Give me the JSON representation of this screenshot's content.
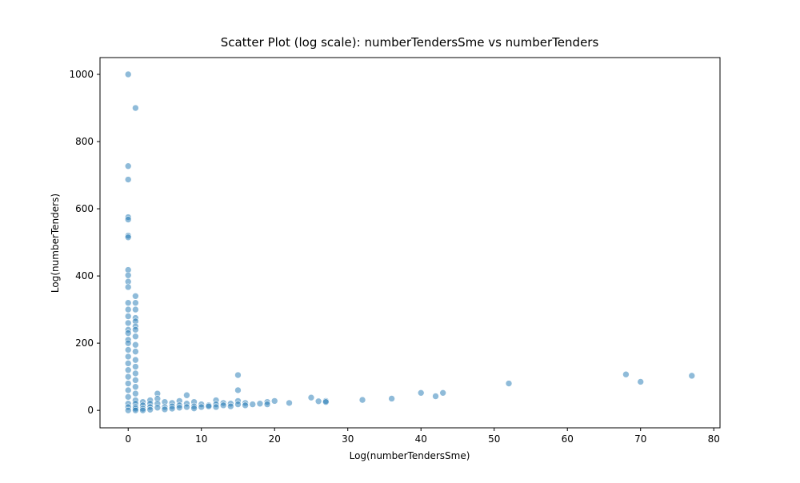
{
  "chart_data": {
    "type": "scatter",
    "title": "Scatter Plot (log scale): numberTendersSme vs numberTenders",
    "x_label": "Log(numberTendersSme)",
    "y_label": "Log(numberTenders)",
    "color": "#1f77b4",
    "alpha": 0.5,
    "xlim": [
      -3.85,
      80.85
    ],
    "ylim": [
      -52,
      1050
    ],
    "xticks": [
      0,
      10,
      20,
      30,
      40,
      50,
      60,
      70,
      80
    ],
    "yticks": [
      0,
      200,
      400,
      600,
      800,
      1000
    ],
    "x": [
      0,
      0,
      0,
      0,
      0,
      0,
      0,
      0,
      0,
      0,
      0,
      0,
      0,
      0,
      0,
      0,
      0,
      0,
      0,
      0,
      0,
      0,
      0,
      0,
      0,
      0,
      0,
      0,
      0,
      0,
      1,
      1,
      1,
      1,
      1,
      1,
      1,
      1,
      1,
      1,
      1,
      1,
      1,
      1,
      1,
      1,
      1,
      1,
      1,
      1,
      1,
      1,
      2,
      2,
      2,
      2,
      3,
      3,
      3,
      3,
      4,
      4,
      4,
      4,
      5,
      5,
      5,
      6,
      6,
      6,
      7,
      7,
      7,
      8,
      8,
      8,
      9,
      9,
      9,
      10,
      10,
      11,
      11,
      12,
      12,
      12,
      13,
      13,
      14,
      14,
      15,
      15,
      15,
      15,
      16,
      16,
      17,
      18,
      19,
      19,
      20,
      22,
      25,
      26,
      27,
      27,
      32,
      36,
      40,
      42,
      43,
      52,
      68,
      70,
      77
    ],
    "values": [
      1000,
      727,
      687,
      575,
      568,
      520,
      515,
      418,
      402,
      383,
      367,
      320,
      300,
      280,
      260,
      240,
      230,
      210,
      200,
      180,
      160,
      140,
      120,
      100,
      80,
      60,
      40,
      20,
      10,
      0,
      900,
      340,
      320,
      300,
      275,
      265,
      250,
      240,
      220,
      195,
      175,
      150,
      130,
      110,
      90,
      70,
      50,
      30,
      20,
      10,
      5,
      0,
      25,
      15,
      5,
      0,
      30,
      20,
      10,
      2,
      50,
      35,
      20,
      8,
      25,
      10,
      3,
      22,
      12,
      5,
      28,
      15,
      8,
      45,
      20,
      10,
      25,
      12,
      6,
      18,
      10,
      15,
      12,
      30,
      18,
      10,
      22,
      15,
      20,
      12,
      105,
      60,
      28,
      18,
      22,
      15,
      18,
      20,
      25,
      18,
      28,
      22,
      38,
      27,
      28,
      25,
      31,
      35,
      52,
      42,
      52,
      80,
      107,
      85,
      103
    ]
  }
}
